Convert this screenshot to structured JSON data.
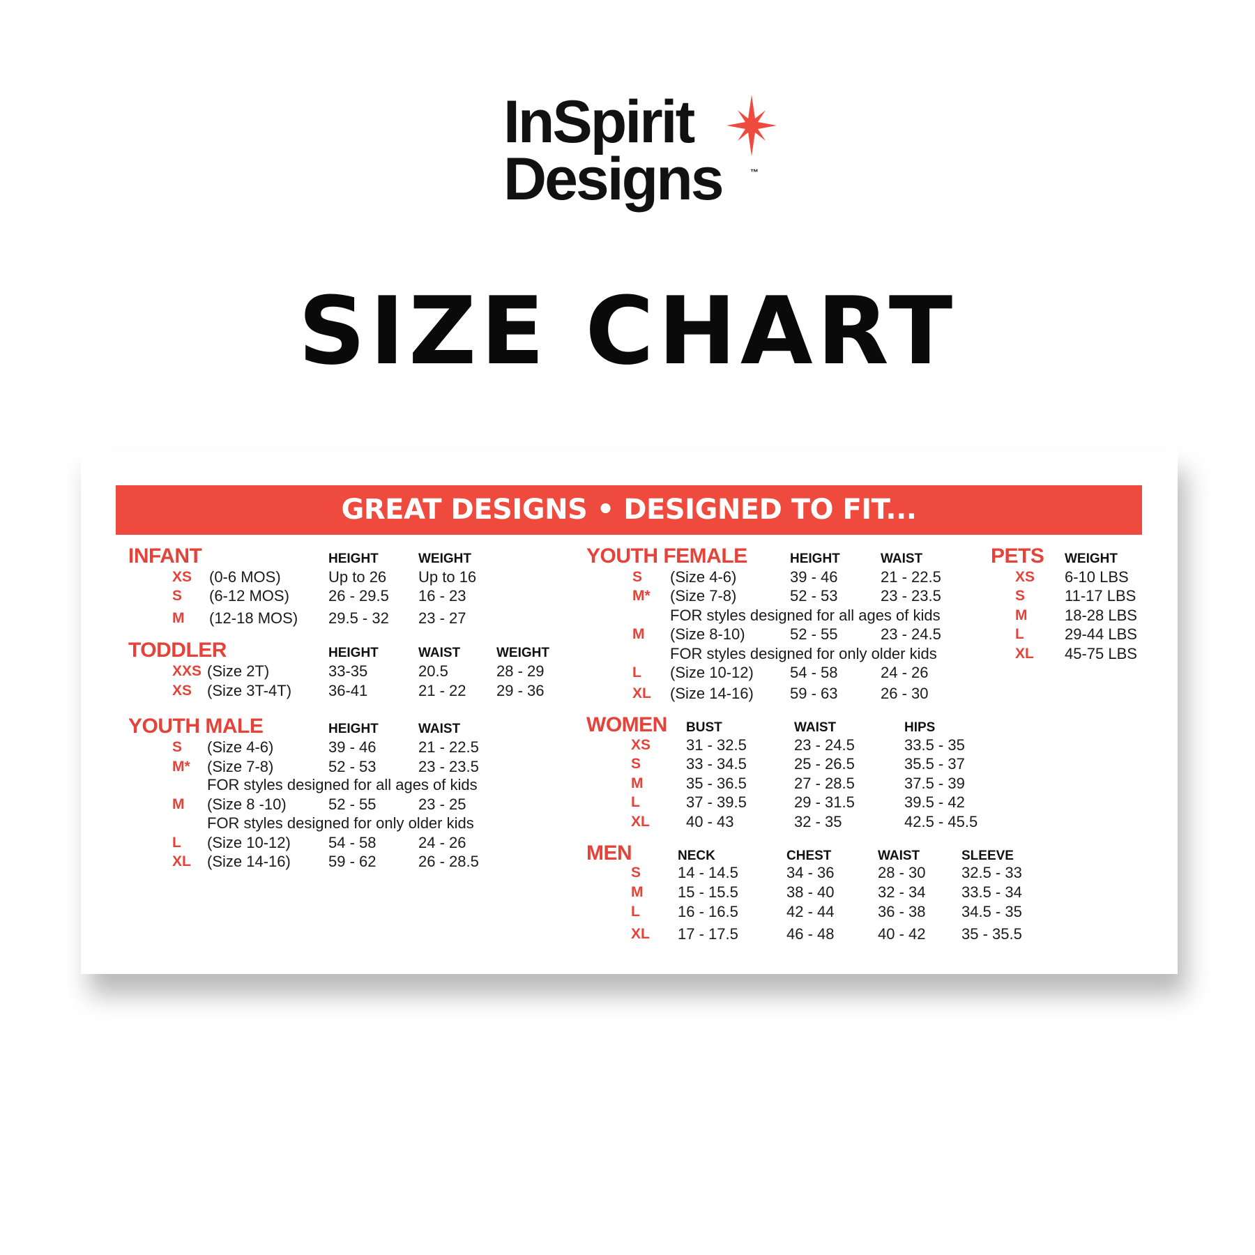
{
  "logo": {
    "line1": "InSpirit",
    "line2": "Designs",
    "tm": "™",
    "star_color": "#ee4a3e"
  },
  "title": "SIZE CHART",
  "banner": {
    "text": "GREAT DESIGNS • DESIGNED TO FIT...",
    "color": "#ee4a3e"
  },
  "colors": {
    "accent": "#e5423a",
    "text": "#1a1a1a"
  },
  "sections": [
    {
      "id": "infant",
      "title": "INFANT",
      "headers": [
        "HEIGHT",
        "WEIGHT"
      ],
      "rows": [
        {
          "code": "XS",
          "desc": "(0-6 MOS)",
          "values": [
            "Up to 26",
            "Up to 16"
          ]
        },
        {
          "code": "S",
          "desc": "(6-12 MOS)",
          "values": [
            "26 - 29.5",
            "16 - 23"
          ]
        },
        {
          "code": "M",
          "desc": "(12-18 MOS)",
          "values": [
            "29.5 - 32",
            "23 - 27"
          ]
        }
      ]
    },
    {
      "id": "toddler",
      "title": "TODDLER",
      "headers": [
        "HEIGHT",
        "WAIST",
        "WEIGHT"
      ],
      "rows": [
        {
          "code": "XXS",
          "desc": "(Size 2T)",
          "values": [
            "33-35",
            "20.5",
            "28 - 29"
          ]
        },
        {
          "code": "XS",
          "desc": "(Size 3T-4T)",
          "values": [
            "36-41",
            "21 - 22",
            "29 - 36"
          ]
        }
      ]
    },
    {
      "id": "youth-male",
      "title": "YOUTH MALE",
      "headers": [
        "HEIGHT",
        "WAIST"
      ],
      "rows": [
        {
          "code": "S",
          "desc": "(Size 4-6)",
          "values": [
            "39 - 46",
            "21 - 22.5"
          ]
        },
        {
          "code": "M*",
          "desc": "(Size 7-8)",
          "values": [
            "52 - 53",
            "23 - 23.5"
          ]
        },
        {
          "note": "FOR styles designed for all ages of kids"
        },
        {
          "code": "M",
          "desc": "(Size 8 -10)",
          "values": [
            "52 - 55",
            "23 - 25"
          ]
        },
        {
          "note": "FOR styles designed for only older kids"
        },
        {
          "code": "L",
          "desc": "(Size 10-12)",
          "values": [
            "54 - 58",
            "24 - 26"
          ]
        },
        {
          "code": "XL",
          "desc": "(Size 14-16)",
          "values": [
            "59 - 62",
            "26 - 28.5"
          ]
        }
      ]
    },
    {
      "id": "youth-female",
      "title": "YOUTH FEMALE",
      "headers": [
        "HEIGHT",
        "WAIST"
      ],
      "rows": [
        {
          "code": "S",
          "desc": "(Size 4-6)",
          "values": [
            "39 - 46",
            "21 - 22.5"
          ]
        },
        {
          "code": "M*",
          "desc": "(Size 7-8)",
          "values": [
            "52 - 53",
            "23 - 23.5"
          ]
        },
        {
          "note": "FOR styles designed for all ages of kids"
        },
        {
          "code": "M",
          "desc": "(Size 8-10)",
          "values": [
            "52 - 55",
            "23 - 24.5"
          ]
        },
        {
          "note": "FOR styles designed for only older kids"
        },
        {
          "code": "L",
          "desc": "(Size 10-12)",
          "values": [
            "54 - 58",
            "24 - 26"
          ]
        },
        {
          "code": "XL",
          "desc": "(Size 14-16)",
          "values": [
            "59 - 63",
            "26 - 30"
          ]
        }
      ]
    },
    {
      "id": "pets",
      "title": "PETS",
      "headers": [
        "WEIGHT"
      ],
      "rows": [
        {
          "code": "XS",
          "values": [
            "6-10 LBS"
          ]
        },
        {
          "code": "S",
          "values": [
            "11-17 LBS"
          ]
        },
        {
          "code": "M",
          "values": [
            "18-28 LBS"
          ]
        },
        {
          "code": "L",
          "values": [
            "29-44 LBS"
          ]
        },
        {
          "code": "XL",
          "values": [
            "45-75 LBS"
          ]
        }
      ]
    },
    {
      "id": "women",
      "title": "WOMEN",
      "headers": [
        "BUST",
        "WAIST",
        "HIPS"
      ],
      "rows": [
        {
          "code": "XS",
          "values": [
            "31 - 32.5",
            "23 - 24.5",
            "33.5 - 35"
          ]
        },
        {
          "code": "S",
          "values": [
            "33 - 34.5",
            "25 - 26.5",
            "35.5 - 37"
          ]
        },
        {
          "code": "M",
          "values": [
            "35 - 36.5",
            "27 - 28.5",
            "37.5 - 39"
          ]
        },
        {
          "code": "L",
          "values": [
            "37 - 39.5",
            "29 - 31.5",
            "39.5 - 42"
          ]
        },
        {
          "code": "XL",
          "values": [
            "40 - 43",
            "32 - 35",
            "42.5 - 45.5"
          ]
        }
      ]
    },
    {
      "id": "men",
      "title": "MEN",
      "headers": [
        "NECK",
        "CHEST",
        "WAIST",
        "SLEEVE"
      ],
      "rows": [
        {
          "code": "S",
          "values": [
            "14 - 14.5",
            "34 - 36",
            "28 - 30",
            "32.5 - 33"
          ]
        },
        {
          "code": "M",
          "values": [
            "15 - 15.5",
            "38 - 40",
            "32 - 34",
            "33.5 - 34"
          ]
        },
        {
          "code": "L",
          "values": [
            "16 - 16.5",
            "42 - 44",
            "36 - 38",
            "34.5 - 35"
          ]
        },
        {
          "code": "XL",
          "values": [
            "17 - 17.5",
            "46 - 48",
            "40 - 42",
            "35 - 35.5"
          ]
        }
      ]
    }
  ]
}
